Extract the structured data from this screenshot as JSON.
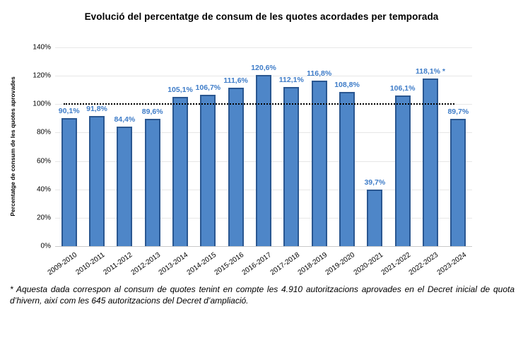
{
  "title": "Evolució del percentatge de consum de les quotes acordades per temporada",
  "footnote": "* Aquesta dada correspon al consum de quotes tenint en compte les 4.910 autoritzacions aprovades en el Decret inicial de quota d’hivern, així com les 645 autoritzacions del Decret d’ampliació.",
  "chart_data": {
    "type": "bar",
    "title": "Evolució del percentatge de consum de les quotes acordades per temporada",
    "xlabel": "",
    "ylabel": "Percentatge de consum de les quotes aprovades",
    "categories": [
      "2009-2010",
      "2010-2011",
      "2011-2012",
      "2012-2013",
      "2013-2014",
      "2014-2015",
      "2015-2016",
      "2016-2017",
      "2017-2018",
      "2018-2019",
      "2019-2020",
      "2020-2021",
      "2021-2022",
      "2022-2023",
      "2023-2024"
    ],
    "values": [
      90.1,
      91.8,
      84.4,
      89.6,
      105.1,
      106.7,
      111.6,
      120.6,
      112.1,
      116.8,
      108.8,
      39.7,
      106.1,
      118.1,
      89.7
    ],
    "value_labels": [
      "90,1%",
      "91,8%",
      "84,4%",
      "89,6%",
      "105,1%",
      "106,7%",
      "111,6%",
      "120,6%",
      "112,1%",
      "116,8%",
      "108,8%",
      "39,7%",
      "106,1%",
      "118,1% *",
      "89,7%"
    ],
    "ylim": [
      0,
      140
    ],
    "ytick_step": 20,
    "ytick_labels": [
      "0%",
      "20%",
      "40%",
      "60%",
      "80%",
      "100%",
      "120%",
      "140%"
    ],
    "grid": true,
    "legend": "none",
    "reference_line": {
      "value": 100,
      "style": "dotted",
      "color": "#000000"
    },
    "colors": {
      "bar_fill": "#4e86c8",
      "bar_border": "#2a5791",
      "value_label": "#3e7cc8",
      "gridline": "#e7e7e7",
      "axis_text": "#000000"
    }
  }
}
